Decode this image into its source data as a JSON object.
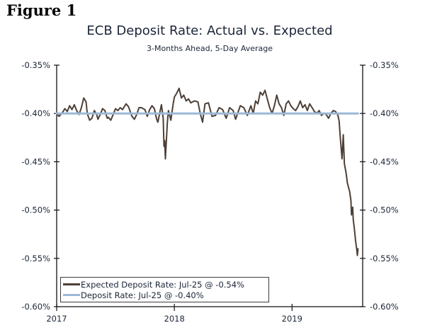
{
  "page": {
    "figure_label": "Figure 1"
  },
  "chart_data": {
    "type": "line",
    "title": "ECB Deposit Rate: Actual vs. Expected",
    "subtitle": "3-Months Ahead, 5-Day Average",
    "x_range": [
      2017,
      2019.6
    ],
    "y_range": [
      -0.6,
      -0.35
    ],
    "grid": false,
    "legend_position": "bottom-left",
    "x_ticks": [
      {
        "v": 2017,
        "label": "2017"
      },
      {
        "v": 2018,
        "label": "2018"
      },
      {
        "v": 2019,
        "label": "2019"
      }
    ],
    "y_ticks": [
      {
        "v": -0.35,
        "label": "-0.35%"
      },
      {
        "v": -0.4,
        "label": "-0.40%"
      },
      {
        "v": -0.45,
        "label": "-0.45%"
      },
      {
        "v": -0.5,
        "label": "-0.50%"
      },
      {
        "v": -0.55,
        "label": "-0.55%"
      },
      {
        "v": -0.6,
        "label": "-0.60%"
      }
    ],
    "colors": {
      "axis": "#111111",
      "text": "#1b2538",
      "background": "#ffffff"
    },
    "series": [
      {
        "id": "expected-deposit-rate",
        "name": "Expected Deposit Rate: Jul-25 @ -0.54%",
        "color": "#4d4037",
        "width": 2,
        "points": [
          [
            2017.0,
            -0.4
          ],
          [
            2017.02,
            -0.403
          ],
          [
            2017.05,
            -0.399
          ],
          [
            2017.07,
            -0.395
          ],
          [
            2017.09,
            -0.398
          ],
          [
            2017.11,
            -0.392
          ],
          [
            2017.13,
            -0.396
          ],
          [
            2017.15,
            -0.391
          ],
          [
            2017.17,
            -0.397
          ],
          [
            2017.19,
            -0.401
          ],
          [
            2017.21,
            -0.394
          ],
          [
            2017.23,
            -0.384
          ],
          [
            2017.25,
            -0.388
          ],
          [
            2017.26,
            -0.4
          ],
          [
            2017.28,
            -0.407
          ],
          [
            2017.3,
            -0.405
          ],
          [
            2017.32,
            -0.397
          ],
          [
            2017.34,
            -0.401
          ],
          [
            2017.35,
            -0.406
          ],
          [
            2017.37,
            -0.401
          ],
          [
            2017.39,
            -0.395
          ],
          [
            2017.41,
            -0.397
          ],
          [
            2017.43,
            -0.405
          ],
          [
            2017.44,
            -0.404
          ],
          [
            2017.46,
            -0.407
          ],
          [
            2017.48,
            -0.401
          ],
          [
            2017.5,
            -0.395
          ],
          [
            2017.52,
            -0.397
          ],
          [
            2017.54,
            -0.394
          ],
          [
            2017.56,
            -0.396
          ],
          [
            2017.59,
            -0.39
          ],
          [
            2017.61,
            -0.393
          ],
          [
            2017.64,
            -0.403
          ],
          [
            2017.66,
            -0.406
          ],
          [
            2017.68,
            -0.401
          ],
          [
            2017.7,
            -0.394
          ],
          [
            2017.72,
            -0.394
          ],
          [
            2017.75,
            -0.396
          ],
          [
            2017.77,
            -0.403
          ],
          [
            2017.79,
            -0.396
          ],
          [
            2017.81,
            -0.392
          ],
          [
            2017.83,
            -0.395
          ],
          [
            2017.85,
            -0.406
          ],
          [
            2017.86,
            -0.409
          ],
          [
            2017.88,
            -0.397
          ],
          [
            2017.89,
            -0.391
          ],
          [
            2017.905,
            -0.405
          ],
          [
            2017.912,
            -0.434
          ],
          [
            2017.918,
            -0.428
          ],
          [
            2017.924,
            -0.447
          ],
          [
            2017.94,
            -0.41
          ],
          [
            2017.95,
            -0.397
          ],
          [
            2017.96,
            -0.402
          ],
          [
            2017.97,
            -0.407
          ],
          [
            2017.99,
            -0.39
          ],
          [
            2018.0,
            -0.383
          ],
          [
            2018.02,
            -0.379
          ],
          [
            2018.04,
            -0.374
          ],
          [
            2018.06,
            -0.384
          ],
          [
            2018.08,
            -0.381
          ],
          [
            2018.1,
            -0.387
          ],
          [
            2018.12,
            -0.385
          ],
          [
            2018.14,
            -0.389
          ],
          [
            2018.17,
            -0.387
          ],
          [
            2018.2,
            -0.388
          ],
          [
            2018.22,
            -0.4
          ],
          [
            2018.24,
            -0.409
          ],
          [
            2018.26,
            -0.39
          ],
          [
            2018.29,
            -0.389
          ],
          [
            2018.32,
            -0.403
          ],
          [
            2018.35,
            -0.402
          ],
          [
            2018.38,
            -0.394
          ],
          [
            2018.41,
            -0.396
          ],
          [
            2018.44,
            -0.405
          ],
          [
            2018.47,
            -0.394
          ],
          [
            2018.5,
            -0.397
          ],
          [
            2018.52,
            -0.406
          ],
          [
            2018.54,
            -0.399
          ],
          [
            2018.56,
            -0.392
          ],
          [
            2018.59,
            -0.394
          ],
          [
            2018.62,
            -0.402
          ],
          [
            2018.65,
            -0.392
          ],
          [
            2018.67,
            -0.4
          ],
          [
            2018.69,
            -0.387
          ],
          [
            2018.71,
            -0.39
          ],
          [
            2018.73,
            -0.378
          ],
          [
            2018.75,
            -0.381
          ],
          [
            2018.77,
            -0.376
          ],
          [
            2018.79,
            -0.385
          ],
          [
            2018.81,
            -0.394
          ],
          [
            2018.83,
            -0.4
          ],
          [
            2018.85,
            -0.392
          ],
          [
            2018.87,
            -0.381
          ],
          [
            2018.89,
            -0.39
          ],
          [
            2018.91,
            -0.394
          ],
          [
            2018.93,
            -0.402
          ],
          [
            2018.95,
            -0.39
          ],
          [
            2018.97,
            -0.387
          ],
          [
            2018.99,
            -0.392
          ],
          [
            2019.01,
            -0.395
          ],
          [
            2019.03,
            -0.397
          ],
          [
            2019.05,
            -0.393
          ],
          [
            2019.07,
            -0.387
          ],
          [
            2019.09,
            -0.394
          ],
          [
            2019.11,
            -0.391
          ],
          [
            2019.13,
            -0.397
          ],
          [
            2019.15,
            -0.39
          ],
          [
            2019.17,
            -0.394
          ],
          [
            2019.19,
            -0.398
          ],
          [
            2019.21,
            -0.4
          ],
          [
            2019.23,
            -0.397
          ],
          [
            2019.25,
            -0.402
          ],
          [
            2019.27,
            -0.4
          ],
          [
            2019.29,
            -0.401
          ],
          [
            2019.31,
            -0.405
          ],
          [
            2019.33,
            -0.4
          ],
          [
            2019.35,
            -0.397
          ],
          [
            2019.37,
            -0.398
          ],
          [
            2019.39,
            -0.402
          ],
          [
            2019.4,
            -0.408
          ],
          [
            2019.41,
            -0.425
          ],
          [
            2019.425,
            -0.447
          ],
          [
            2019.435,
            -0.422
          ],
          [
            2019.445,
            -0.452
          ],
          [
            2019.46,
            -0.462
          ],
          [
            2019.47,
            -0.472
          ],
          [
            2019.49,
            -0.481
          ],
          [
            2019.5,
            -0.49
          ],
          [
            2019.505,
            -0.505
          ],
          [
            2019.515,
            -0.497
          ],
          [
            2019.52,
            -0.51
          ],
          [
            2019.53,
            -0.52
          ],
          [
            2019.54,
            -0.532
          ],
          [
            2019.55,
            -0.541
          ],
          [
            2019.555,
            -0.547
          ],
          [
            2019.56,
            -0.54
          ]
        ]
      },
      {
        "id": "deposit-rate",
        "name": "Deposit Rate: Jul-25 @ -0.40%",
        "color": "#9cb8d6",
        "width": 3,
        "points": [
          [
            2017.0,
            -0.4
          ],
          [
            2019.56,
            -0.4
          ]
        ]
      }
    ]
  }
}
